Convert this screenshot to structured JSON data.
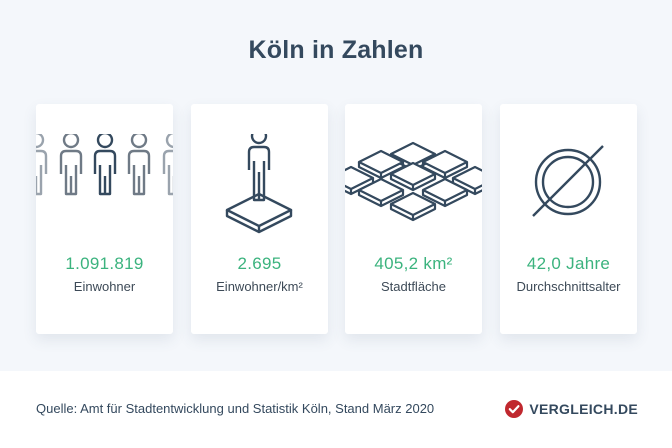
{
  "header": {
    "title": "Köln in Zahlen"
  },
  "cards": [
    {
      "icon": "people-icon",
      "value": "1.091.819",
      "label": "Einwohner"
    },
    {
      "icon": "person-on-plot-icon",
      "value": "2.695",
      "label": "Einwohner/km²"
    },
    {
      "icon": "area-tiles-icon",
      "value": "405,2 km²",
      "label": "Stadtfläche"
    },
    {
      "icon": "average-icon",
      "value": "42,0 Jahre",
      "label": "Durchschnittsalter"
    }
  ],
  "footer": {
    "source": "Quelle: Amt für Stadtentwicklung und Statistik Köln, Stand März 2020",
    "brand": "VERGLEICH.DE"
  },
  "colors": {
    "background": "#f4f7fb",
    "title": "#34495e",
    "value": "#3bb37e",
    "icon_stroke": "#34495e",
    "icon_stroke_faded": "#9aa3ad",
    "brand_check": "#c0282e"
  }
}
